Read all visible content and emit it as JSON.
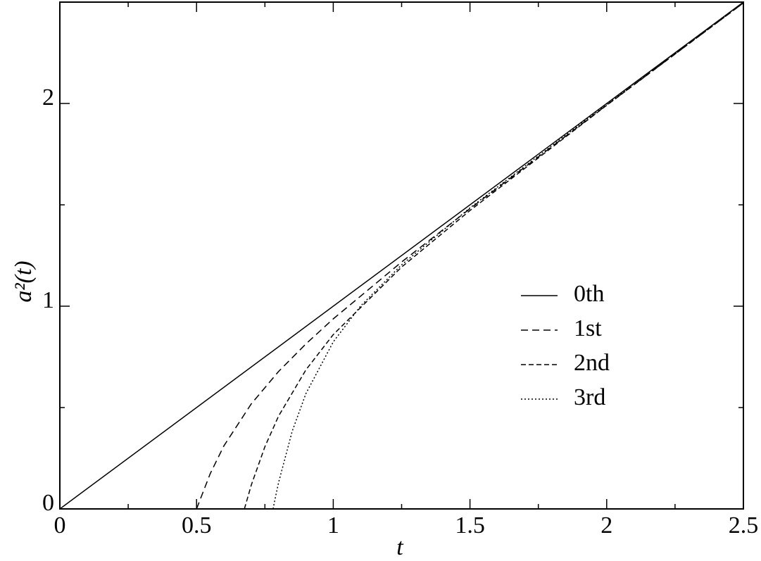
{
  "chart_data": {
    "type": "line",
    "xlabel": "t",
    "ylabel": "a²(t)",
    "xlim": [
      0,
      2.5
    ],
    "ylim": [
      0,
      2.5
    ],
    "xticks": [
      0,
      0.5,
      1,
      1.5,
      2,
      2.5
    ],
    "xminorticks": [
      0.25,
      0.75,
      1.25,
      1.75,
      2.25
    ],
    "yticks": [
      0,
      1,
      2
    ],
    "yminorticks": [
      0.5,
      1.5
    ],
    "legend": "center right",
    "series": [
      {
        "name": "0th",
        "color": "#000000",
        "style": "solid",
        "x": [
          0,
          2.5
        ],
        "values": [
          0,
          2.5
        ]
      },
      {
        "name": "1st",
        "color": "#000000",
        "style": "long-dashed",
        "x": [
          0.5,
          0.55,
          0.6,
          0.7,
          0.8,
          0.9,
          1,
          1.25,
          1.5,
          2,
          2.5
        ],
        "values": [
          0,
          0.174,
          0.311,
          0.518,
          0.678,
          0.814,
          0.9375,
          1.218,
          1.481,
          1.992,
          2.496
        ]
      },
      {
        "name": "2nd",
        "color": "#000000",
        "style": "dashed",
        "x": [
          0.675,
          0.7,
          0.75,
          0.8,
          0.9,
          1,
          1.25,
          1.5,
          2,
          2.5
        ],
        "values": [
          0,
          0.117,
          0.307,
          0.458,
          0.686,
          0.86,
          1.193,
          1.472,
          1.991,
          2.496
        ]
      },
      {
        "name": "3rd",
        "color": "#000000",
        "style": "dotted",
        "x": [
          0.78,
          0.785,
          0.79,
          0.8,
          0.85,
          0.9,
          1,
          1.1,
          1.25,
          1.5,
          2,
          2.5
        ],
        "values": [
          0,
          0.035,
          0.067,
          0.13,
          0.384,
          0.569,
          0.824,
          1.001,
          1.204,
          1.485,
          1.997,
          2.499
        ]
      }
    ]
  }
}
